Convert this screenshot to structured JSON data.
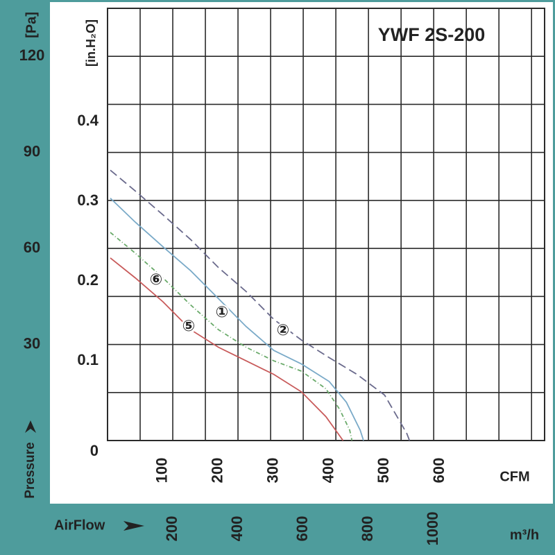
{
  "chart_data": {
    "type": "line",
    "title": "YWF 2S-200",
    "y_label": "[Pa]",
    "y2_label": "[in.H₂O]",
    "y_title": "Pressure",
    "x_label": "m³/h",
    "x2_label": "CFM",
    "x_title": "AirFlow",
    "ylim": [
      0,
      135
    ],
    "yticks": [
      30,
      60,
      90,
      120
    ],
    "ygrid": [
      0,
      15,
      30,
      45,
      60,
      75,
      90,
      105,
      120,
      135
    ],
    "y2lim": [
      0,
      0.542
    ],
    "y2ticks": [
      0,
      0.1,
      0.2,
      0.3,
      0.4
    ],
    "xlim": [
      0,
      1340
    ],
    "xticks": [
      200,
      400,
      600,
      800,
      1000
    ],
    "xgrid": [
      0,
      100,
      200,
      300,
      400,
      500,
      600,
      700,
      800,
      900,
      1000,
      1100,
      1200,
      1300
    ],
    "x2lim": [
      0,
      788.7
    ],
    "x2ticks": [
      100,
      200,
      300,
      400,
      500,
      600
    ],
    "series": [
      {
        "name": "②",
        "color": "#6a6a8c",
        "dash": "12,6",
        "axis": "y2",
        "x": [
          5,
          50,
          100,
          150,
          200,
          250,
          300,
          350,
          400,
          450,
          500,
          540,
          545
        ],
        "values": [
          0.339,
          0.313,
          0.283,
          0.252,
          0.217,
          0.187,
          0.152,
          0.126,
          0.104,
          0.083,
          0.057,
          0.009,
          0
        ]
      },
      {
        "name": "①",
        "color": "#7aaac8",
        "dash": "none",
        "axis": "y2",
        "x": [
          5,
          50,
          100,
          150,
          200,
          250,
          300,
          350,
          400,
          431,
          456,
          462
        ],
        "values": [
          0.304,
          0.274,
          0.243,
          0.213,
          0.178,
          0.143,
          0.113,
          0.096,
          0.074,
          0.048,
          0.013,
          0
        ]
      },
      {
        "name": "⑥",
        "color": "#6aaa6a",
        "dash": "6,3,1,3",
        "axis": "y2",
        "x": [
          5,
          50,
          100,
          150,
          200,
          250,
          300,
          350,
          394,
          419,
          437,
          441
        ],
        "values": [
          0.261,
          0.235,
          0.204,
          0.17,
          0.139,
          0.117,
          0.1,
          0.087,
          0.065,
          0.039,
          0.013,
          0
        ]
      },
      {
        "name": "⑤",
        "color": "#c85a5a",
        "dash": "none",
        "axis": "y2",
        "x": [
          5,
          50,
          100,
          150,
          200,
          250,
          300,
          350,
          394,
          425
        ],
        "values": [
          0.229,
          0.204,
          0.174,
          0.139,
          0.117,
          0.1,
          0.083,
          0.061,
          0.03,
          0
        ]
      }
    ]
  }
}
